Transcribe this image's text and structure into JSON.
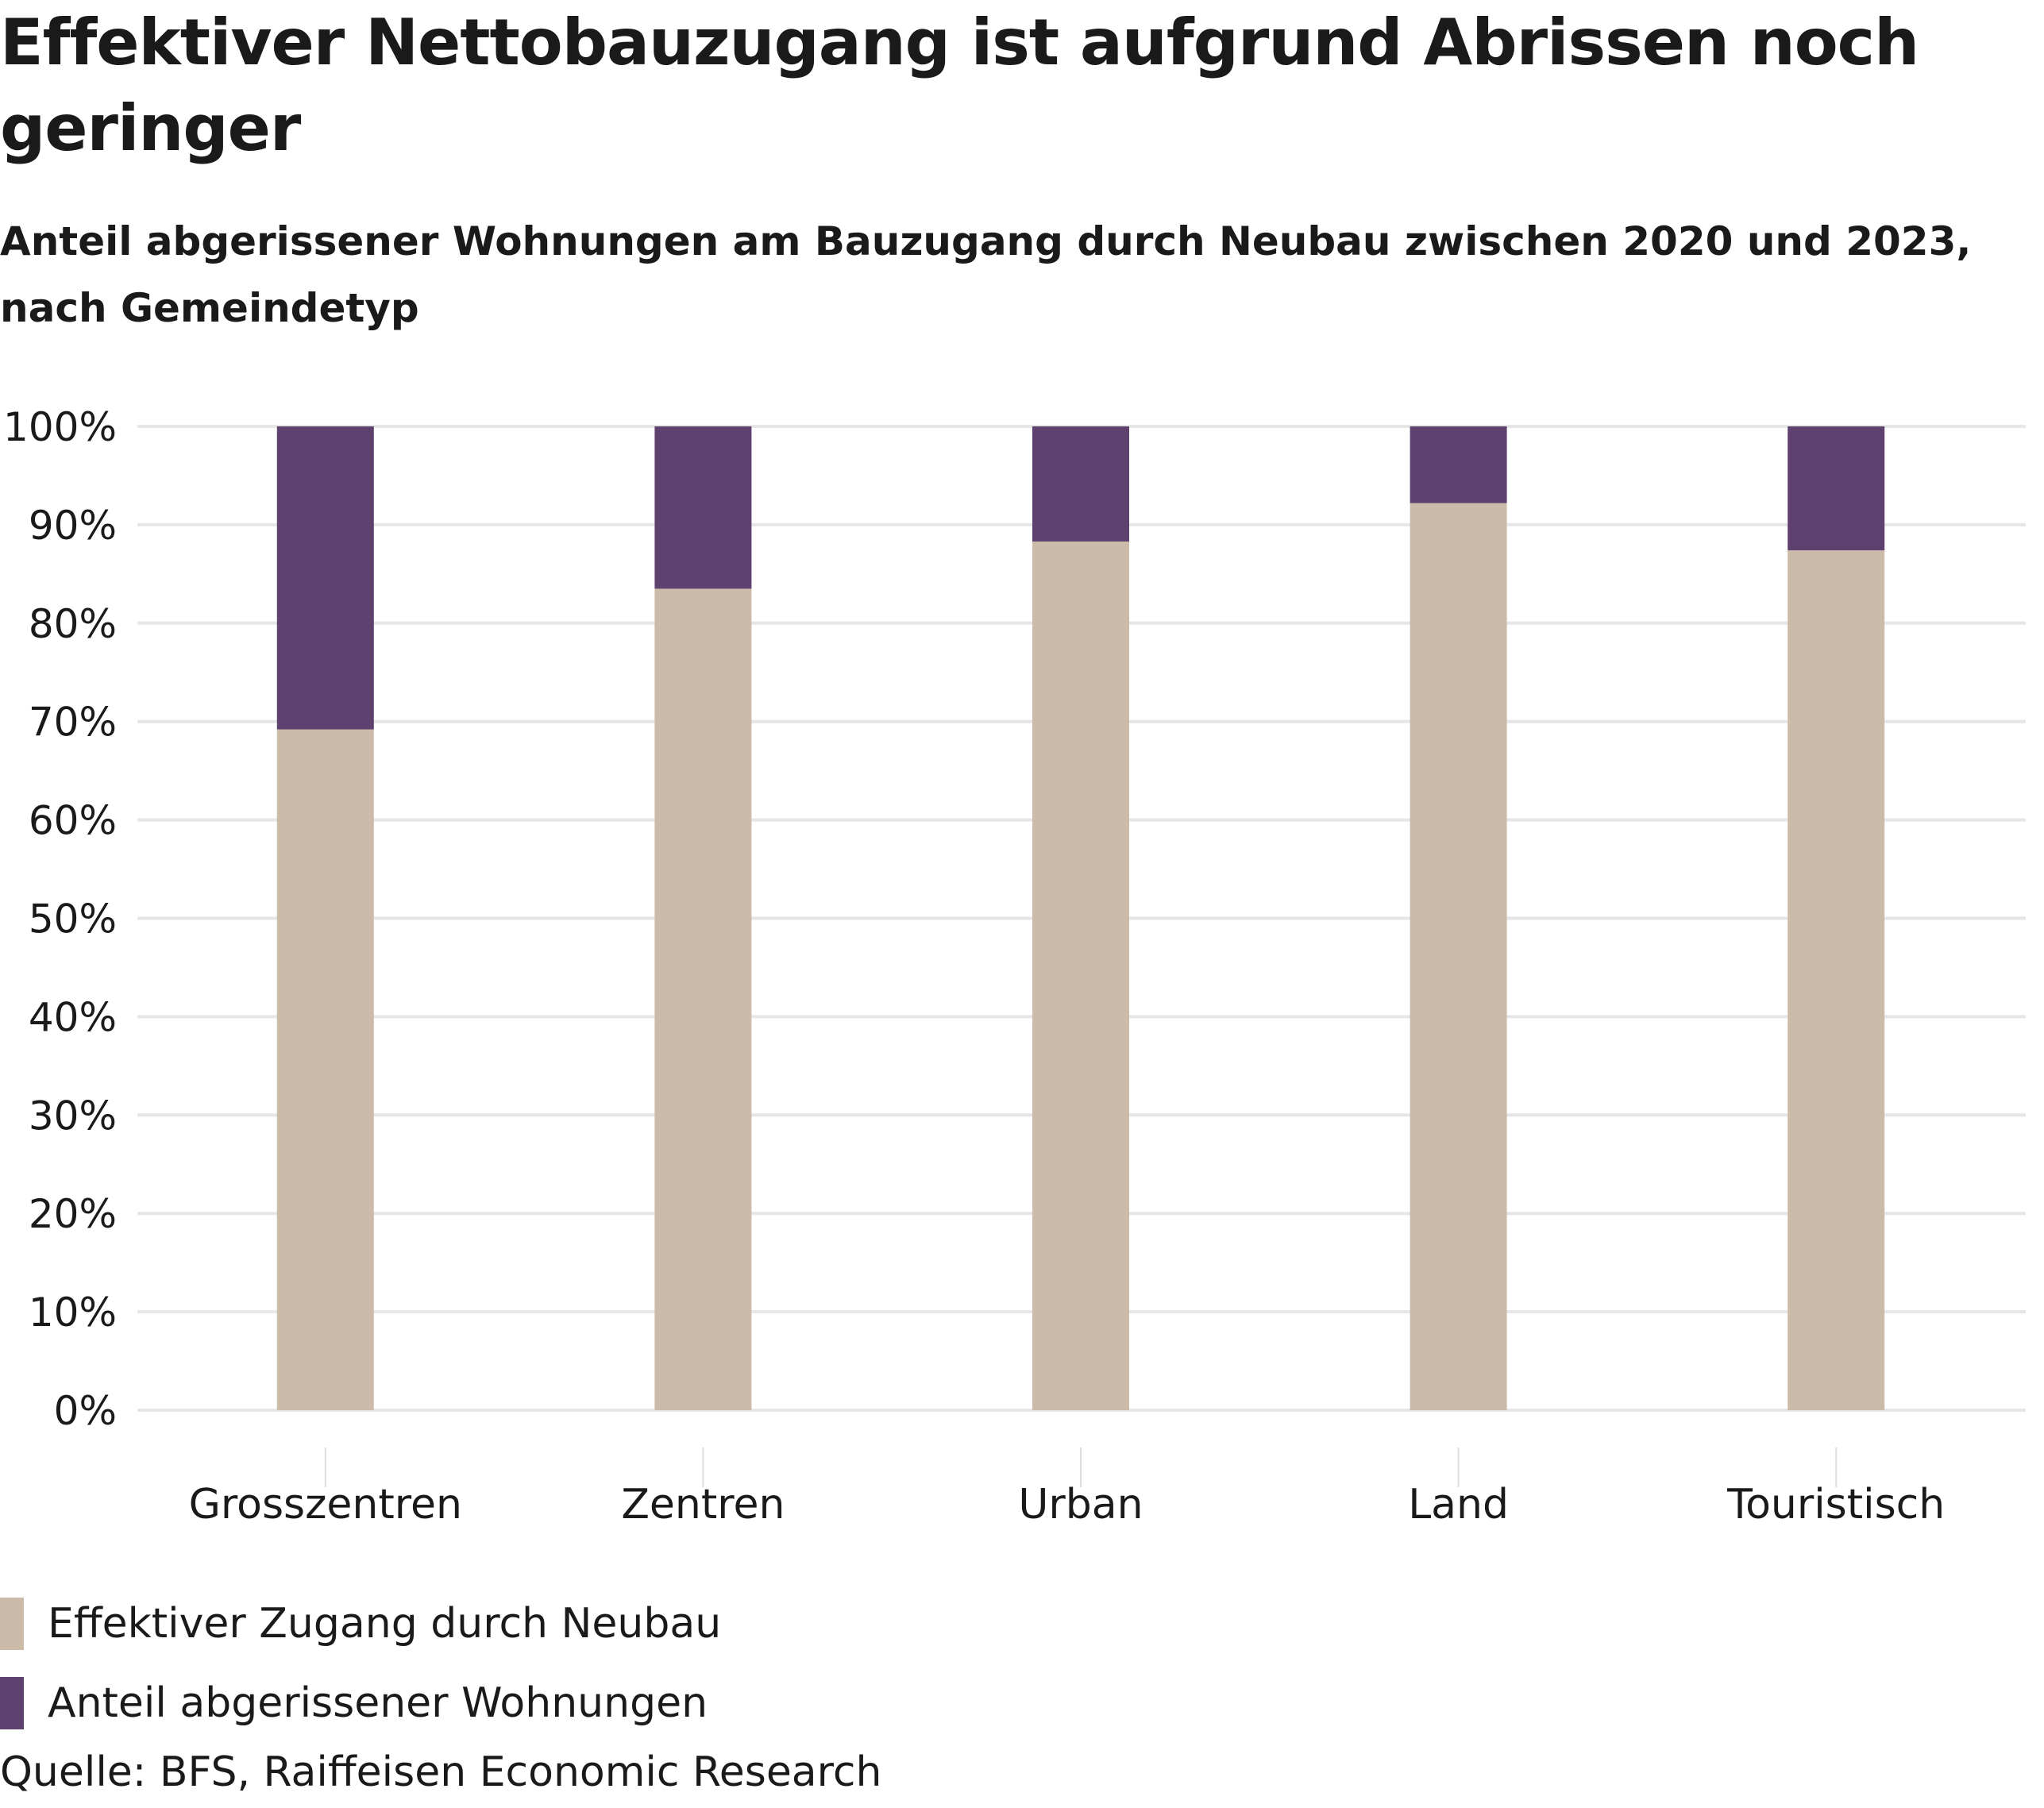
{
  "title": "Effektiver Nettobauzugang ist aufgrund Abrissen noch geringer",
  "subtitle": "Anteil abgerissener Wohnungen am Bauzugang durch Neubau zwischen 2020 und 2023, nach Gemeindetyp",
  "source": "Quelle: BFS, Raiffeisen Economic Research",
  "colors": {
    "neubau": "#CDBBAA",
    "abriss": "#5F4170",
    "grid": "#E6E6E6"
  },
  "chart_data": {
    "type": "bar",
    "stacked": true,
    "title": "Effektiver Nettobauzugang ist aufgrund Abrissen noch geringer",
    "subtitle": "Anteil abgerissener Wohnungen am Bauzugang durch Neubau zwischen 2020 und 2023, nach Gemeindetyp",
    "xlabel": "",
    "ylabel": "",
    "ylim": [
      0,
      100
    ],
    "yticks": [
      "0%",
      "10%",
      "20%",
      "30%",
      "40%",
      "50%",
      "60%",
      "70%",
      "80%",
      "90%",
      "100%"
    ],
    "grid": true,
    "legend_position": "bottom-left",
    "categories": [
      "Grosszentren",
      "Zentren",
      "Urban",
      "Land",
      "Touristisch"
    ],
    "series": [
      {
        "name": "Effektiver Zugang durch Neubau",
        "color": "#CDBBAA",
        "values": [
          69.2,
          83.5,
          88.3,
          92.2,
          87.4
        ]
      },
      {
        "name": "Anteil abgerissener Wohnungen",
        "color": "#5F4170",
        "values": [
          30.8,
          16.5,
          11.7,
          7.8,
          12.6
        ]
      }
    ]
  }
}
